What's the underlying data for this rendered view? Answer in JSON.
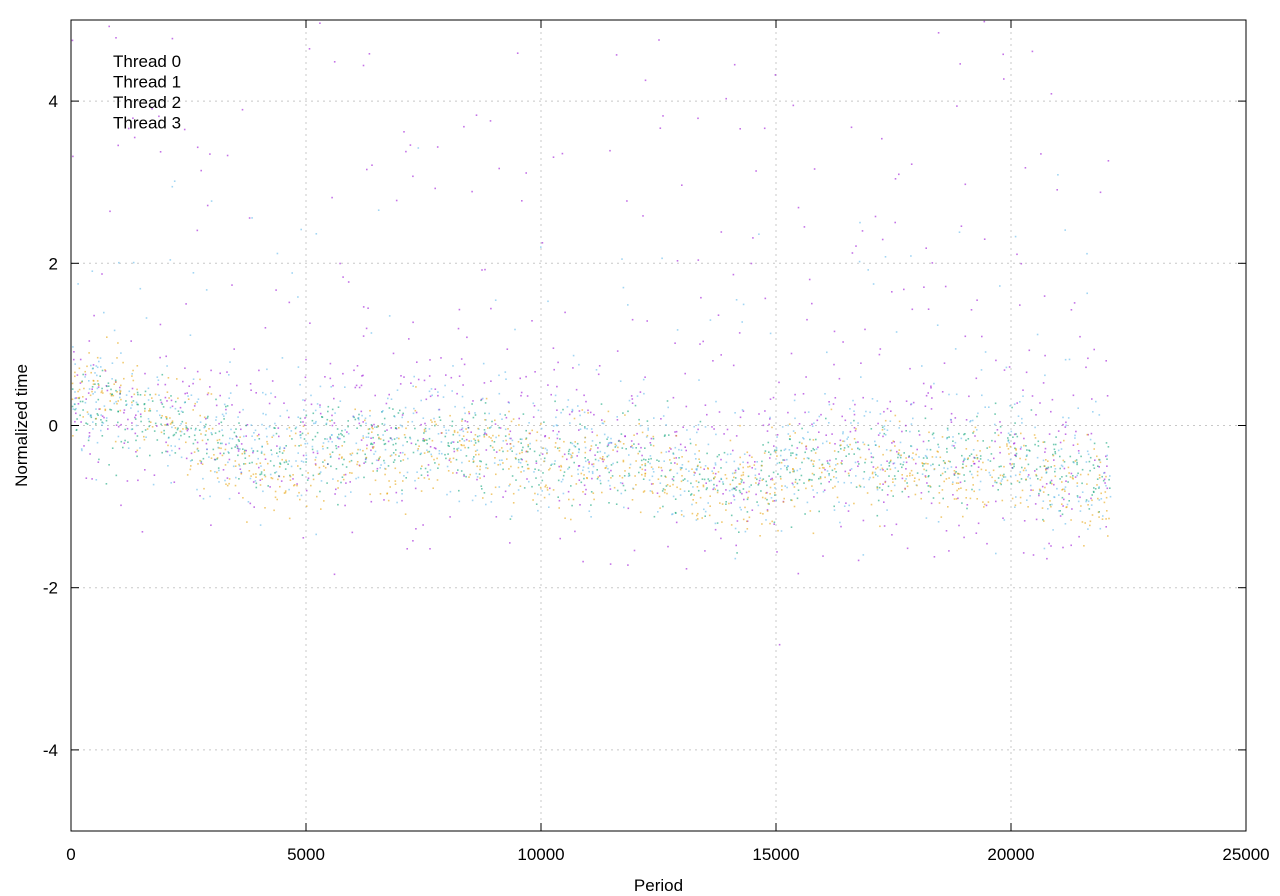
{
  "chart_data": {
    "type": "scatter",
    "title": "",
    "xlabel": "Period",
    "ylabel": "Normalized time",
    "xlim": [
      0,
      25000
    ],
    "ylim": [
      -5,
      5
    ],
    "xticks": [
      0,
      5000,
      10000,
      15000,
      20000,
      25000
    ],
    "yticks": [
      -4,
      -2,
      0,
      2,
      4
    ],
    "grid": true,
    "legend_position": "top-left",
    "x_extent_of_data": [
      0,
      22100
    ],
    "series": [
      {
        "name": "Thread 0",
        "color": "#9400d3",
        "marker": "dot",
        "approx_trend": {
          "x": [
            0,
            2000,
            4000,
            6000,
            8000,
            10000,
            12000,
            14000,
            16000,
            18000,
            20000,
            22100
          ],
          "y": [
            0.3,
            0.1,
            -0.2,
            -0.1,
            -0.1,
            -0.2,
            -0.3,
            -0.5,
            -0.2,
            -0.3,
            -0.3,
            -0.6
          ]
        },
        "spread": 1.3
      },
      {
        "name": "Thread 1",
        "color": "#009e73",
        "marker": "dot",
        "approx_trend": {
          "x": [
            0,
            2000,
            4000,
            6000,
            8000,
            10000,
            12000,
            14000,
            16000,
            18000,
            20000,
            22100
          ],
          "y": [
            0.3,
            0.0,
            -0.3,
            -0.3,
            -0.2,
            -0.4,
            -0.4,
            -0.8,
            -0.4,
            -0.5,
            -0.4,
            -0.8
          ]
        },
        "spread": 0.6
      },
      {
        "name": "Thread 2",
        "color": "#56b4e9",
        "marker": "dot",
        "approx_trend": {
          "x": [
            0,
            2000,
            4000,
            6000,
            8000,
            10000,
            12000,
            14000,
            16000,
            18000,
            20000,
            22100
          ],
          "y": [
            0.3,
            0.0,
            -0.2,
            -0.2,
            -0.1,
            -0.3,
            -0.3,
            -0.7,
            -0.3,
            -0.4,
            -0.3,
            -0.7
          ]
        },
        "spread": 0.9
      },
      {
        "name": "Thread 3",
        "color": "#e69f00",
        "marker": "dot",
        "approx_trend": {
          "x": [
            0,
            2000,
            4000,
            6000,
            8000,
            10000,
            12000,
            14000,
            16000,
            18000,
            20000,
            22100
          ],
          "y": [
            0.5,
            0.1,
            -0.6,
            -0.4,
            -0.2,
            -0.5,
            -0.5,
            -0.8,
            -0.5,
            -0.5,
            -0.5,
            -0.8
          ]
        },
        "spread": 0.6
      }
    ]
  }
}
